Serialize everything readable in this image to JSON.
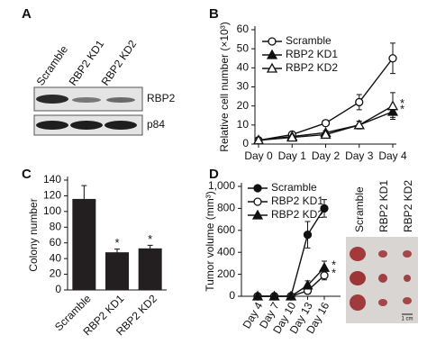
{
  "blot": {
    "panel": "A",
    "lanes": [
      "Scramble",
      "RBP2 KD1",
      "RBP2 KD2"
    ],
    "rows": [
      "RBP2",
      "p84"
    ]
  },
  "tumor_photo": {
    "columns": [
      "Scramble",
      "RBP2 KD1",
      "RBP2 KD2"
    ],
    "scale": "1 cm"
  },
  "chart_data": [
    {
      "type": "line",
      "panel": "B",
      "y_label": "Relative cell number (×10³)",
      "categories": [
        "Day 0",
        "Day 1",
        "Day 2",
        "Day 3",
        "Day 4"
      ],
      "ylim": [
        0,
        60
      ],
      "yticks": [
        0,
        10,
        20,
        30,
        40,
        50,
        60
      ],
      "legend": "top-left",
      "series": [
        {
          "name": "Scramble",
          "color": "#111111",
          "marker": "open-circle",
          "values": [
            2,
            5,
            11,
            22,
            45
          ],
          "errors": [
            0.5,
            1,
            1,
            4,
            8
          ],
          "significance": [
            null,
            null,
            null,
            null,
            null
          ]
        },
        {
          "name": "RBP2 KD1",
          "color": "#111111",
          "marker": "filled-triangle",
          "values": [
            2,
            4,
            6,
            10,
            17
          ],
          "errors": [
            0.5,
            0.8,
            1,
            2,
            3
          ],
          "significance": [
            null,
            null,
            null,
            null,
            "*"
          ]
        },
        {
          "name": "RBP2 KD2",
          "color": "#111111",
          "marker": "open-triangle",
          "values": [
            2,
            3.5,
            5,
            10,
            20
          ],
          "errors": [
            0.5,
            0.8,
            1,
            2,
            7
          ],
          "significance": [
            null,
            null,
            null,
            null,
            "*"
          ]
        }
      ]
    },
    {
      "type": "bar",
      "panel": "C",
      "y_label": "Colony number",
      "categories": [
        "Scramble",
        "RBP2 KD1",
        "RBP2 KD2"
      ],
      "ylim": [
        0,
        140
      ],
      "yticks": [
        0,
        20,
        40,
        60,
        80,
        100,
        120,
        140
      ],
      "color": "#231f20",
      "values": [
        116,
        48,
        53
      ],
      "errors": [
        17,
        4,
        4
      ],
      "significance": [
        null,
        "*",
        "*"
      ]
    },
    {
      "type": "line",
      "panel": "D",
      "y_label": "Tumor volume (mm³)",
      "categories": [
        "Day 4",
        "Day 7",
        "Day 10",
        "Day 13",
        "Day 16"
      ],
      "ylim": [
        0,
        1000
      ],
      "yticks": [
        0,
        200,
        400,
        600,
        800,
        {
          "value": 1000,
          "label": "1,000"
        }
      ],
      "legend": "top-left",
      "series": [
        {
          "name": "Scramble",
          "color": "#111111",
          "marker": "filled-circle",
          "values": [
            0,
            0,
            0,
            560,
            800
          ],
          "errors": [
            0,
            0,
            0,
            120,
            80
          ],
          "significance": [
            null,
            null,
            null,
            null,
            null
          ]
        },
        {
          "name": "RBP2 KD1",
          "color": "#111111",
          "marker": "open-circle",
          "values": [
            0,
            0,
            0,
            50,
            190
          ],
          "errors": [
            0,
            0,
            0,
            30,
            40
          ],
          "significance": [
            null,
            null,
            null,
            null,
            "*"
          ]
        },
        {
          "name": "RBP2 KD2",
          "color": "#111111",
          "marker": "filled-triangle",
          "values": [
            0,
            0,
            0,
            100,
            260
          ],
          "errors": [
            0,
            0,
            0,
            40,
            60
          ],
          "significance": [
            null,
            null,
            null,
            null,
            "*"
          ]
        }
      ]
    }
  ]
}
